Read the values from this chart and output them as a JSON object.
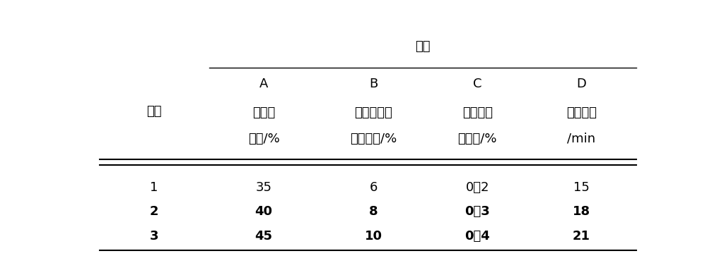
{
  "title_row": "因素",
  "col_headers_line1": [
    "A",
    "B",
    "C",
    "D"
  ],
  "col_headers_line2": [
    "淀粉乳",
    "复合氧化剂",
    "催化剂质",
    "反应时间"
  ],
  "col_headers_line3": [
    "浓度/%",
    "质量分数/%",
    "量分数/%",
    "/min"
  ],
  "row_label": "水平",
  "rows": [
    [
      "1",
      "35",
      "6",
      "0．2",
      "15"
    ],
    [
      "2",
      "40",
      "8",
      "0．3",
      "18"
    ],
    [
      "3",
      "45",
      "10",
      "0．4",
      "21"
    ]
  ],
  "bold_rows": [
    1,
    2
  ],
  "figsize": [
    10.0,
    3.73
  ],
  "dpi": 100,
  "bg_color": "#ffffff",
  "text_color": "#000000",
  "font_size": 13
}
